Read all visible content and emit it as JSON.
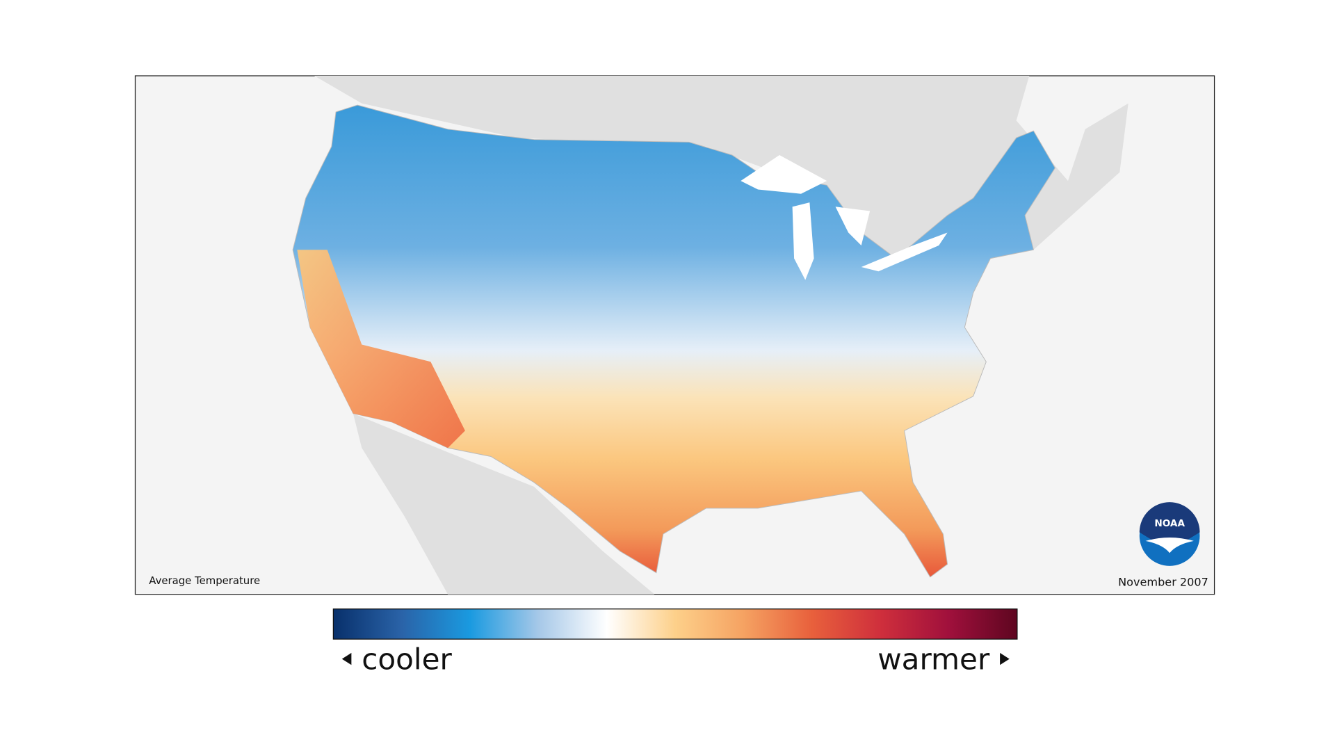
{
  "map": {
    "label": "Average Temperature",
    "date": "November 2007"
  },
  "logo": "NOAA",
  "legend": {
    "low": "cooler",
    "high": "warmer",
    "colors": [
      "#08306b",
      "#2a63a8",
      "#1a9ae0",
      "#a6c8e8",
      "#ffffff",
      "#fdd08a",
      "#f5a262",
      "#e8603c",
      "#cf2f3c",
      "#a0103c",
      "#5e0620"
    ]
  }
}
